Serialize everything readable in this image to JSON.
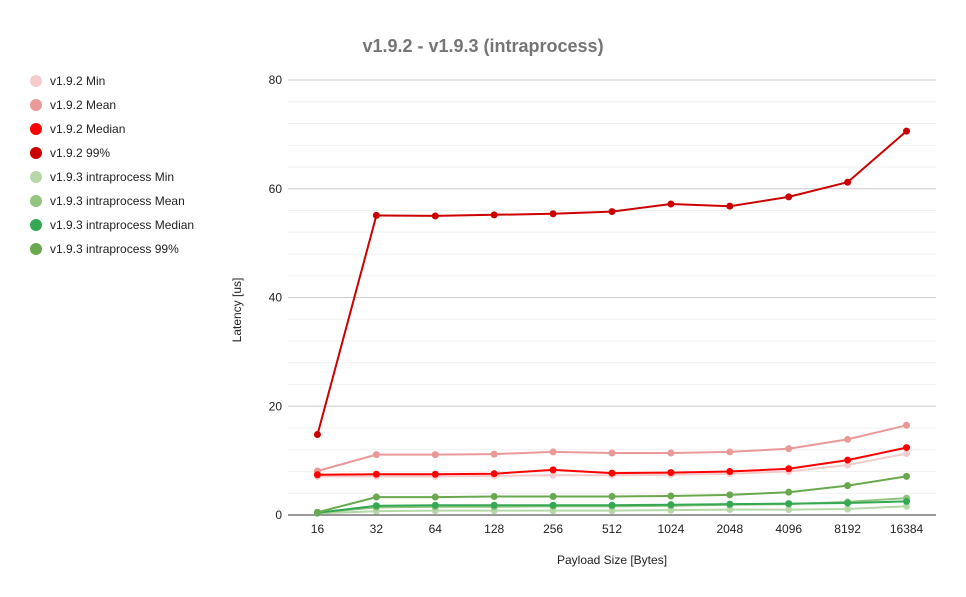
{
  "chart_data": {
    "type": "line",
    "title": "v1.9.2 - v1.9.3 (intraprocess)",
    "xlabel": "Payload Size [Bytes]",
    "ylabel": "Latency [us]",
    "categories": [
      "16",
      "32",
      "64",
      "128",
      "256",
      "512",
      "1024",
      "2048",
      "4096",
      "8192",
      "16384"
    ],
    "ylim": [
      0,
      80
    ],
    "yticks": [
      0,
      20,
      40,
      60,
      80
    ],
    "grid": true,
    "legend_position": "left",
    "series": [
      {
        "name": "v1.9.2 Min",
        "color": "#f4cccc",
        "values": [
          7.1,
          7.1,
          7.1,
          7.2,
          7.3,
          7.3,
          7.4,
          7.6,
          8.0,
          9.2,
          11.3
        ]
      },
      {
        "name": "v1.9.2 Mean",
        "color": "#ea9999",
        "values": [
          8.1,
          11.1,
          11.1,
          11.2,
          11.6,
          11.4,
          11.4,
          11.6,
          12.2,
          13.9,
          16.5
        ]
      },
      {
        "name": "v1.9.2 Median",
        "color": "#ff0000",
        "values": [
          7.4,
          7.5,
          7.5,
          7.6,
          8.3,
          7.7,
          7.8,
          8.0,
          8.5,
          10.1,
          12.4
        ]
      },
      {
        "name": "v1.9.2 99%",
        "color": "#cc0000",
        "values": [
          14.8,
          55.1,
          55.0,
          55.2,
          55.4,
          55.8,
          57.2,
          56.8,
          58.5,
          61.2,
          70.6
        ]
      },
      {
        "name": "v1.9.3 intraprocess Min",
        "color": "#b6d7a8",
        "values": [
          0.3,
          0.7,
          0.8,
          0.8,
          0.8,
          0.8,
          0.9,
          1.0,
          1.0,
          1.1,
          1.6
        ]
      },
      {
        "name": "v1.9.3 intraprocess Mean",
        "color": "#93c47d",
        "values": [
          0.4,
          1.4,
          1.5,
          1.5,
          1.6,
          1.6,
          1.7,
          1.9,
          2.0,
          2.4,
          3.1
        ]
      },
      {
        "name": "v1.9.3 intraprocess Median",
        "color": "#34a853",
        "values": [
          0.4,
          1.7,
          1.8,
          1.8,
          1.8,
          1.8,
          1.9,
          2.0,
          2.1,
          2.2,
          2.5
        ]
      },
      {
        "name": "v1.9.3 intraprocess 99%",
        "color": "#6aa84f",
        "values": [
          0.5,
          3.3,
          3.3,
          3.4,
          3.4,
          3.4,
          3.5,
          3.7,
          4.2,
          5.4,
          7.1
        ]
      }
    ]
  }
}
